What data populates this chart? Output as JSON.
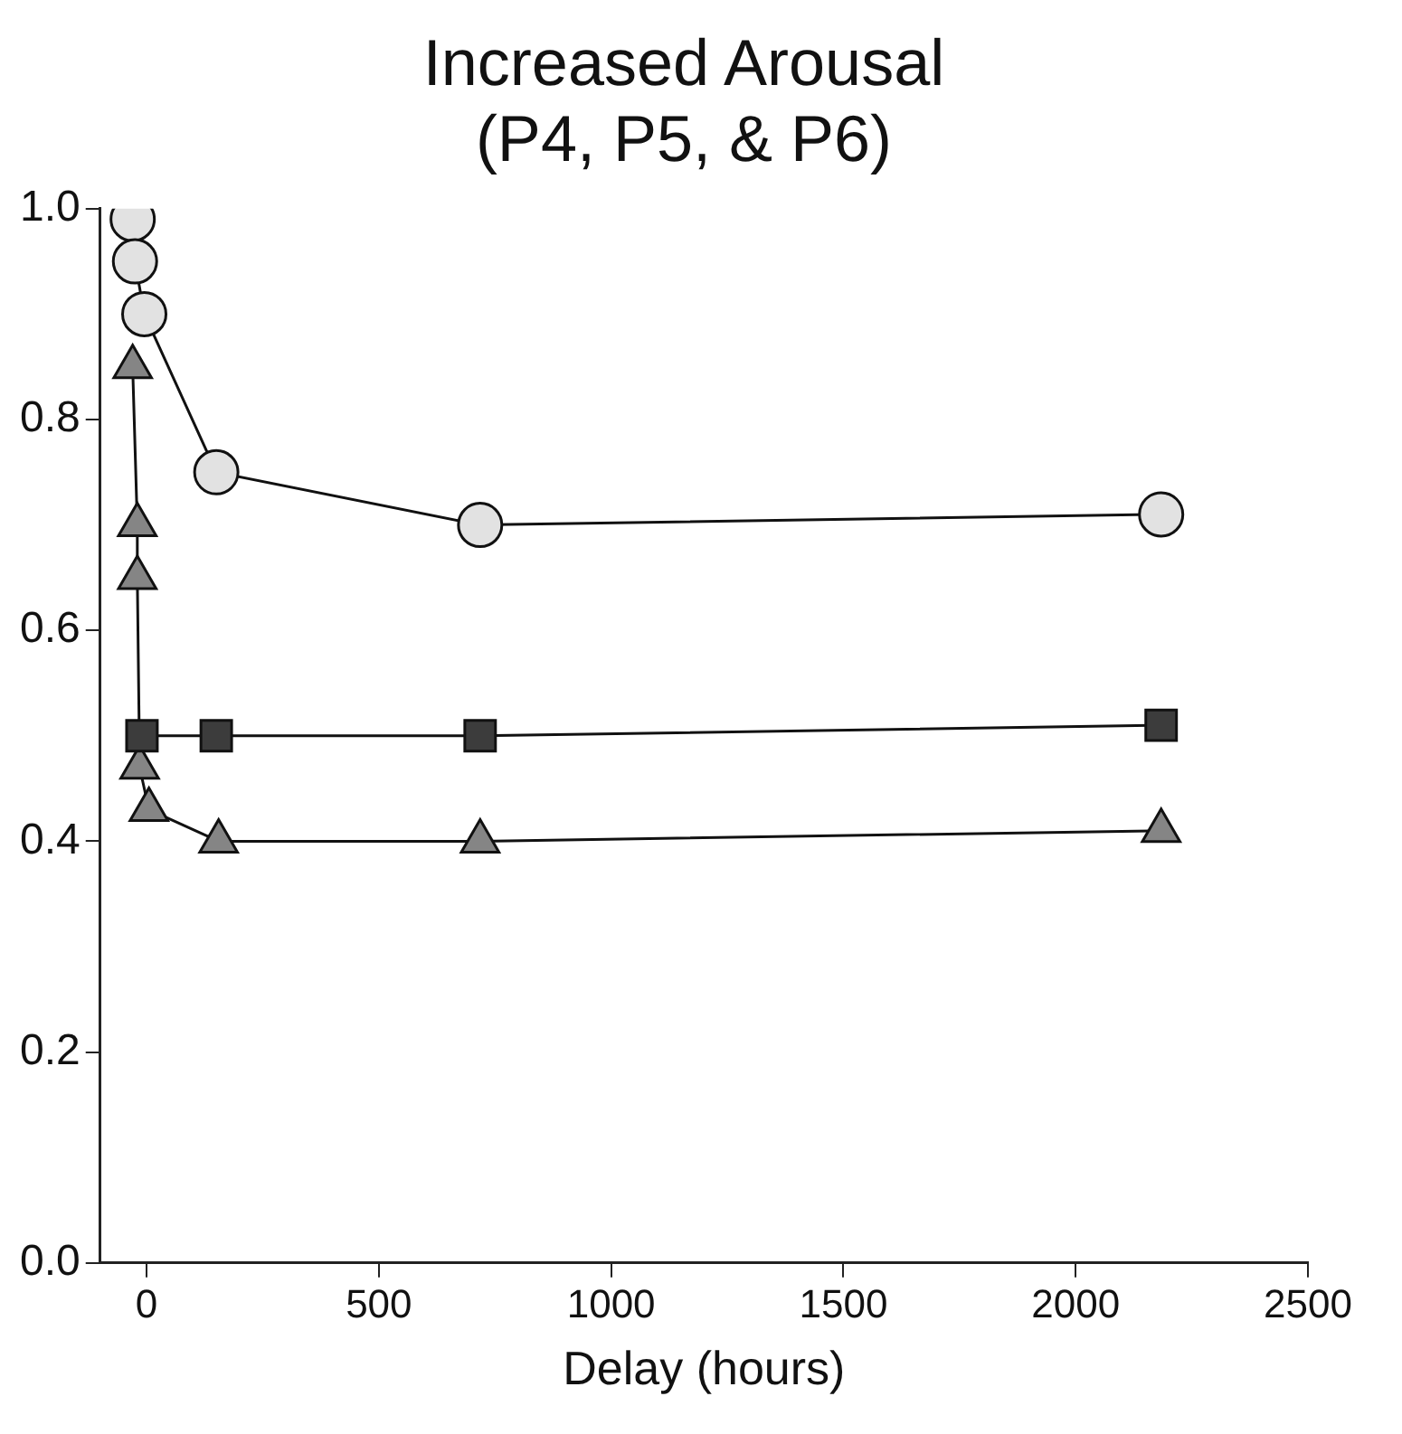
{
  "chart_data": {
    "type": "line",
    "title": "Increased Arousal (P4, P5, & P6)",
    "xlabel": "Delay (hours)",
    "xlim": [
      -100,
      2500
    ],
    "xticks": [
      0,
      500,
      1000,
      1500,
      2000,
      2500
    ],
    "ylim": [
      0,
      1
    ],
    "yticks": [
      {
        "value": 0,
        "label": "0.0"
      },
      {
        "value": 0.2,
        "label": "0.2"
      },
      {
        "value": 0.4,
        "label": "0.4"
      },
      {
        "value": 0.6,
        "label": "0.6"
      },
      {
        "value": 0.8,
        "label": "0.8"
      },
      {
        "value": 1,
        "label": "1.0"
      }
    ],
    "grid": false,
    "legend": false,
    "series": [
      {
        "color": "#e2e2e2",
        "marker": "circle",
        "x": [
          -30,
          -25,
          -5,
          150,
          718,
          2184
        ],
        "values": [
          0.99,
          0.95,
          0.9,
          0.75,
          0.7,
          0.71
        ]
      },
      {
        "color": "#3c3c3c",
        "marker": "square",
        "x": [
          -10,
          150,
          718,
          2184
        ],
        "values": [
          0.5,
          0.5,
          0.5,
          0.51
        ]
      },
      {
        "color": "#858585",
        "marker": "triangle",
        "x": [
          -30,
          -20,
          -20,
          -15,
          5,
          155,
          718,
          2184
        ],
        "values": [
          0.85,
          0.7,
          0.65,
          0.47,
          0.43,
          0.4,
          0.4,
          0.41
        ]
      }
    ]
  }
}
